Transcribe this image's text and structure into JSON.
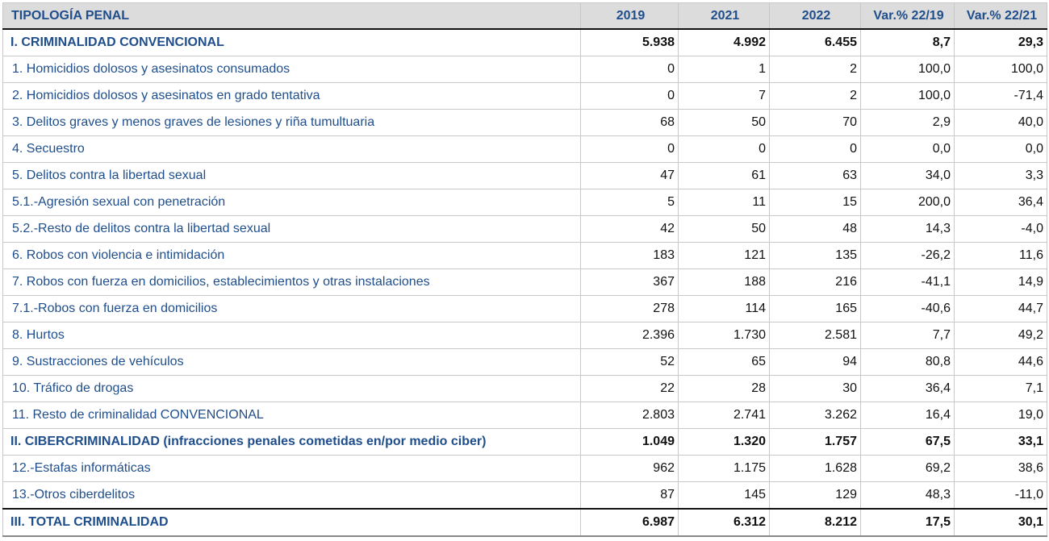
{
  "header": {
    "columns": [
      "TIPOLOGÍA PENAL",
      "2019",
      "2021",
      "2022",
      "Var.% 22/19",
      "Var.% 22/21"
    ]
  },
  "rows": [
    {
      "label": "I. CRIMINALIDAD CONVENCIONAL",
      "type": "section",
      "v2019": "5.938",
      "v2021": "4.992",
      "v2022": "6.455",
      "var2219": "8,7",
      "var2221": "29,3"
    },
    {
      "label": "1. Homicidios dolosos y asesinatos consumados",
      "type": "item",
      "v2019": "0",
      "v2021": "1",
      "v2022": "2",
      "var2219": "100,0",
      "var2221": "100,0"
    },
    {
      "label": "2. Homicidios dolosos y asesinatos en grado tentativa",
      "type": "item",
      "v2019": "0",
      "v2021": "7",
      "v2022": "2",
      "var2219": "100,0",
      "var2221": "-71,4"
    },
    {
      "label": "3. Delitos graves y menos graves de lesiones y riña tumultuaria",
      "type": "item",
      "v2019": "68",
      "v2021": "50",
      "v2022": "70",
      "var2219": "2,9",
      "var2221": "40,0"
    },
    {
      "label": "4. Secuestro",
      "type": "item",
      "v2019": "0",
      "v2021": "0",
      "v2022": "0",
      "var2219": "0,0",
      "var2221": "0,0"
    },
    {
      "label": "5. Delitos contra la libertad sexual",
      "type": "item",
      "v2019": "47",
      "v2021": "61",
      "v2022": "63",
      "var2219": "34,0",
      "var2221": "3,3"
    },
    {
      "label": "5.1.-Agresión sexual con penetración",
      "type": "item",
      "v2019": "5",
      "v2021": "11",
      "v2022": "15",
      "var2219": "200,0",
      "var2221": "36,4"
    },
    {
      "label": "5.2.-Resto de delitos contra la libertad sexual",
      "type": "item",
      "v2019": "42",
      "v2021": "50",
      "v2022": "48",
      "var2219": "14,3",
      "var2221": "-4,0"
    },
    {
      "label": "6. Robos con violencia e intimidación",
      "type": "item",
      "v2019": "183",
      "v2021": "121",
      "v2022": "135",
      "var2219": "-26,2",
      "var2221": "11,6"
    },
    {
      "label": "7. Robos con fuerza en domicilios, establecimientos y otras instalaciones",
      "type": "item",
      "v2019": "367",
      "v2021": "188",
      "v2022": "216",
      "var2219": "-41,1",
      "var2221": "14,9"
    },
    {
      "label": "7.1.-Robos con fuerza en domicilios",
      "type": "item",
      "v2019": "278",
      "v2021": "114",
      "v2022": "165",
      "var2219": "-40,6",
      "var2221": "44,7"
    },
    {
      "label": "8. Hurtos",
      "type": "item",
      "v2019": "2.396",
      "v2021": "1.730",
      "v2022": "2.581",
      "var2219": "7,7",
      "var2221": "49,2"
    },
    {
      "label": "9. Sustracciones de vehículos",
      "type": "item",
      "v2019": "52",
      "v2021": "65",
      "v2022": "94",
      "var2219": "80,8",
      "var2221": "44,6"
    },
    {
      "label": "10. Tráfico de drogas",
      "type": "item",
      "v2019": "22",
      "v2021": "28",
      "v2022": "30",
      "var2219": "36,4",
      "var2221": "7,1"
    },
    {
      "label": "11. Resto de criminalidad CONVENCIONAL",
      "type": "item",
      "v2019": "2.803",
      "v2021": "2.741",
      "v2022": "3.262",
      "var2219": "16,4",
      "var2221": "19,0"
    },
    {
      "label": "II. CIBERCRIMINALIDAD (infracciones penales cometidas en/por medio ciber)",
      "type": "section",
      "v2019": "1.049",
      "v2021": "1.320",
      "v2022": "1.757",
      "var2219": "67,5",
      "var2221": "33,1"
    },
    {
      "label": "12.-Estafas informáticas",
      "type": "item",
      "v2019": "962",
      "v2021": "1.175",
      "v2022": "1.628",
      "var2219": "69,2",
      "var2221": "38,6"
    },
    {
      "label": "13.-Otros ciberdelitos",
      "type": "item",
      "v2019": "87",
      "v2021": "145",
      "v2022": "129",
      "var2219": "48,3",
      "var2221": "-11,0"
    },
    {
      "label": "III. TOTAL CRIMINALIDAD",
      "type": "total",
      "v2019": "6.987",
      "v2021": "6.312",
      "v2022": "8.212",
      "var2219": "17,5",
      "var2221": "30,1"
    }
  ]
}
